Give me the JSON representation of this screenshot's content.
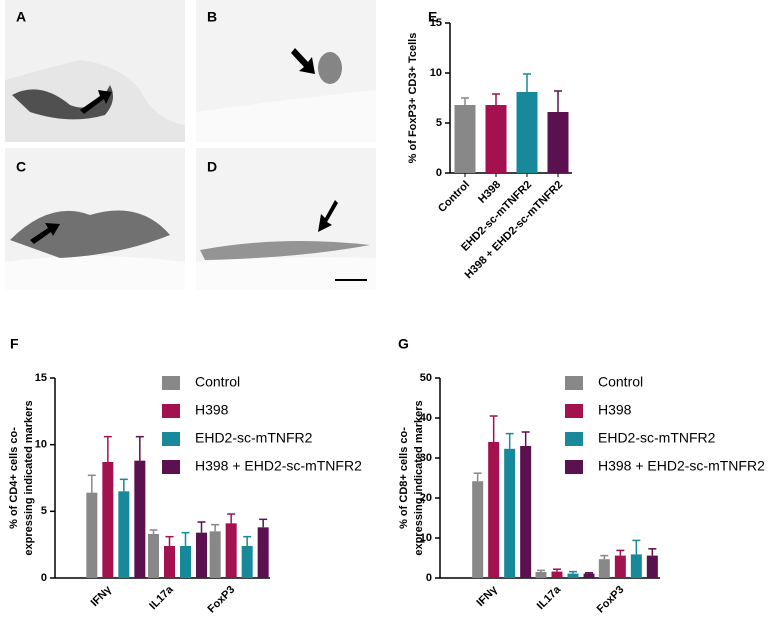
{
  "images": [
    {
      "label": "A"
    },
    {
      "label": "B"
    },
    {
      "label": "C"
    },
    {
      "label": "D"
    }
  ],
  "chart_data": [
    {
      "type": "bar",
      "panel_label": "E",
      "y_label": [
        "% of FoxP3+ CD3+ Tcells"
      ],
      "categories": [
        "Control",
        "H398",
        "EHD2-sc-mTNFR2",
        "H398 + EHD2-sc-mTNFR2"
      ],
      "values": [
        6.8,
        6.8,
        8.1,
        6.1
      ],
      "errors": [
        0.7,
        1.1,
        1.8,
        2.1
      ],
      "colors": [
        "#888888",
        "#a3124f",
        "#17899a",
        "#5b1050"
      ],
      "ylim": [
        0,
        15
      ],
      "yticks": [
        0,
        5,
        10,
        15
      ]
    },
    {
      "type": "grouped_bar",
      "panel_label": "F",
      "y_label": [
        "% of CD4+ cells co-",
        "expressing indicated markers"
      ],
      "categories": [
        "IFNγ",
        "IL17a",
        "FoxP3"
      ],
      "series": [
        {
          "name": "Control",
          "color": "#888888",
          "values": [
            6.4,
            3.3,
            3.5
          ],
          "errors": [
            1.3,
            0.3,
            0.5
          ]
        },
        {
          "name": "H398",
          "color": "#a3124f",
          "values": [
            8.7,
            2.4,
            4.1
          ],
          "errors": [
            1.9,
            0.7,
            0.7
          ]
        },
        {
          "name": "EHD2-sc-mTNFR2",
          "color": "#17899a",
          "values": [
            6.5,
            2.4,
            2.4
          ],
          "errors": [
            0.9,
            1.0,
            0.7
          ]
        },
        {
          "name": "H398 + EHD2-sc-mTNFR2",
          "color": "#5b1050",
          "values": [
            8.8,
            3.4,
            3.8
          ],
          "errors": [
            1.8,
            0.8,
            0.6
          ]
        }
      ],
      "ylim": [
        0,
        15
      ],
      "yticks": [
        0,
        5,
        10,
        15
      ]
    },
    {
      "type": "grouped_bar",
      "panel_label": "G",
      "y_label": [
        "% of CD8+ cells co-",
        "expressing indicated markers"
      ],
      "categories": [
        "IFNγ",
        "IL17a",
        "FoxP3"
      ],
      "series": [
        {
          "name": "Control",
          "color": "#888888",
          "values": [
            24.2,
            1.5,
            4.7
          ],
          "errors": [
            2.0,
            0.4,
            0.9
          ]
        },
        {
          "name": "H398",
          "color": "#a3124f",
          "values": [
            34,
            1.6,
            5.6
          ],
          "errors": [
            6.5,
            0.6,
            1.3
          ]
        },
        {
          "name": "EHD2-sc-mTNFR2",
          "color": "#17899a",
          "values": [
            32.3,
            1.1,
            5.9
          ],
          "errors": [
            3.8,
            0.5,
            3.5
          ]
        },
        {
          "name": "H398 + EHD2-sc-mTNFR2",
          "color": "#5b1050",
          "values": [
            33,
            1.1,
            5.6
          ],
          "errors": [
            3.5,
            0.2,
            1.7
          ]
        }
      ],
      "ylim": [
        0,
        50
      ],
      "yticks": [
        0,
        10,
        20,
        30,
        40,
        50
      ]
    }
  ]
}
